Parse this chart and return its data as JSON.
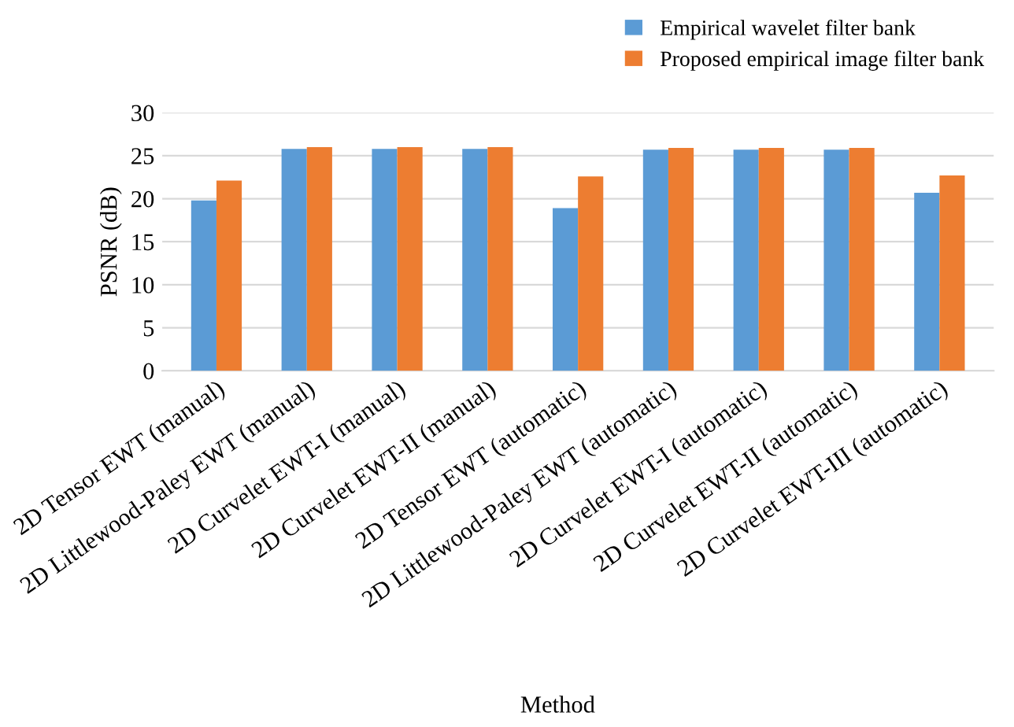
{
  "chart_data": {
    "type": "bar",
    "xlabel": "Method",
    "ylabel": "PSNR (dB)",
    "categories": [
      "2D Tensor EWT (manual)",
      "2D Littlewood-Paley EWT (manual)",
      "2D Curvelet EWT-I (manual)",
      "2D Curvelet EWT-II (manual)",
      "2D Tensor EWT (automatic)",
      "2D Littlewood-Paley EWT (automatic)",
      "2D Curvelet EWT-I (automatic)",
      "2D Curvelet EWT-II (automatic)",
      "2D Curvelet EWT-III (automatic)"
    ],
    "series": [
      {
        "name": "Empirical wavelet filter bank",
        "color": "#5b9bd5",
        "values": [
          19.8,
          25.8,
          25.8,
          25.8,
          18.9,
          25.7,
          25.7,
          25.7,
          20.7
        ]
      },
      {
        "name": "Proposed empirical image filter bank",
        "color": "#ed7d31",
        "values": [
          22.1,
          26.0,
          26.0,
          26.0,
          22.6,
          25.9,
          25.9,
          25.9,
          22.7
        ]
      }
    ],
    "ylim": [
      0,
      30
    ],
    "yticks": [
      0,
      5,
      10,
      15,
      20,
      25,
      30
    ],
    "grid": "y",
    "legend": "top right"
  }
}
